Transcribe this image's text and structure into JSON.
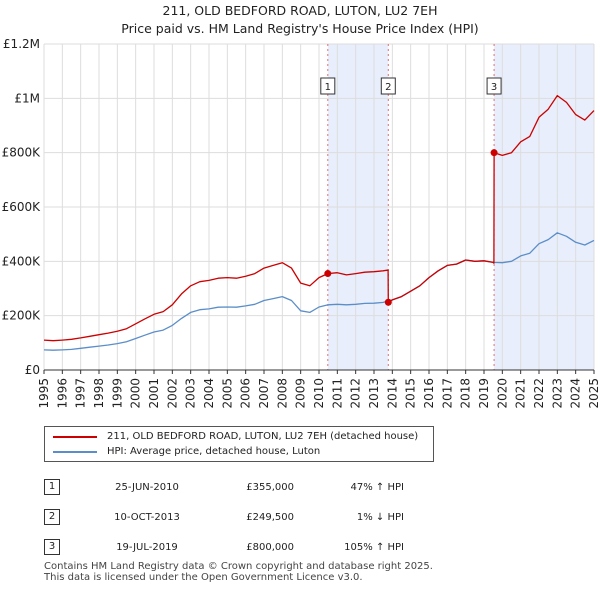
{
  "header": {
    "title_line1": "211, OLD BEDFORD ROAD, LUTON, LU2 7EH",
    "title_line2": "Price paid vs. HM Land Registry's House Price Index (HPI)"
  },
  "colors": {
    "property_line": "#cc0000",
    "hpi_line": "#5b8ec9",
    "shade": "#e8eefb",
    "vline": "#e07070",
    "grid": "#dddddd"
  },
  "chart_data": {
    "type": "line",
    "title": "211, OLD BEDFORD ROAD, LUTON, LU2 7EH — Price paid vs. HM Land Registry's House Price Index (HPI)",
    "xlabel": "",
    "ylabel": "",
    "xlim": [
      1995.0,
      2025.0
    ],
    "ylim": [
      0,
      1200000
    ],
    "grid": true,
    "x_ticks": [
      "1995",
      "1996",
      "1997",
      "1998",
      "1999",
      "2000",
      "2001",
      "2002",
      "2003",
      "2004",
      "2005",
      "2006",
      "2007",
      "2008",
      "2009",
      "2010",
      "2011",
      "2012",
      "2013",
      "2014",
      "2015",
      "2016",
      "2017",
      "2018",
      "2019",
      "2020",
      "2021",
      "2022",
      "2023",
      "2024",
      "2025"
    ],
    "y_ticks": [
      {
        "value": 0,
        "label": "£0"
      },
      {
        "value": 200000,
        "label": "£200K"
      },
      {
        "value": 400000,
        "label": "£400K"
      },
      {
        "value": 600000,
        "label": "£600K"
      },
      {
        "value": 800000,
        "label": "£800K"
      },
      {
        "value": 1000000,
        "label": "£1M"
      },
      {
        "value": 1200000,
        "label": "£1.2M"
      }
    ],
    "shaded_spans": [
      [
        2010.48,
        2013.78
      ],
      [
        2019.55,
        2025.0
      ]
    ],
    "sale_markers": [
      {
        "label": "1",
        "x": 2010.48,
        "y": 355000
      },
      {
        "label": "2",
        "x": 2013.78,
        "y": 249500
      },
      {
        "label": "3",
        "x": 2019.55,
        "y": 800000
      }
    ],
    "series": [
      {
        "name": "211, OLD BEDFORD ROAD, LUTON, LU2 7EH (detached house)",
        "color": "#cc0000",
        "x": [
          1995.0,
          1995.5,
          1996.0,
          1996.5,
          1997.0,
          1997.5,
          1998.0,
          1998.5,
          1999.0,
          1999.5,
          2000.0,
          2000.5,
          2001.0,
          2001.5,
          2002.0,
          2002.5,
          2003.0,
          2003.5,
          2004.0,
          2004.5,
          2005.0,
          2005.5,
          2006.0,
          2006.5,
          2007.0,
          2007.5,
          2008.0,
          2008.5,
          2009.0,
          2009.5,
          2010.0,
          2010.48,
          2011.0,
          2011.5,
          2012.0,
          2012.5,
          2013.0,
          2013.5,
          2013.77,
          2013.78,
          2014.0,
          2014.5,
          2015.0,
          2015.5,
          2016.0,
          2016.5,
          2017.0,
          2017.5,
          2018.0,
          2018.5,
          2019.0,
          2019.5,
          2019.54,
          2019.55,
          2020.0,
          2020.5,
          2021.0,
          2021.5,
          2022.0,
          2022.5,
          2023.0,
          2023.5,
          2024.0,
          2024.5,
          2025.0
        ],
        "values": [
          110000,
          108000,
          110000,
          113000,
          118000,
          124000,
          130000,
          136000,
          143000,
          152000,
          170000,
          188000,
          205000,
          215000,
          240000,
          280000,
          310000,
          325000,
          330000,
          338000,
          340000,
          338000,
          345000,
          355000,
          375000,
          385000,
          395000,
          375000,
          320000,
          310000,
          340000,
          355000,
          358000,
          350000,
          355000,
          360000,
          362000,
          365000,
          368000,
          249500,
          258000,
          270000,
          290000,
          310000,
          340000,
          365000,
          385000,
          390000,
          405000,
          400000,
          402000,
          396000,
          393000,
          800000,
          790000,
          800000,
          840000,
          860000,
          930000,
          960000,
          1010000,
          985000,
          940000,
          920000,
          955000
        ]
      },
      {
        "name": "HPI: Average price, detached house, Luton",
        "color": "#5b8ec9",
        "x": [
          1995.0,
          1995.5,
          1996.0,
          1996.5,
          1997.0,
          1997.5,
          1998.0,
          1998.5,
          1999.0,
          1999.5,
          2000.0,
          2000.5,
          2001.0,
          2001.5,
          2002.0,
          2002.5,
          2003.0,
          2003.5,
          2004.0,
          2004.5,
          2005.0,
          2005.5,
          2006.0,
          2006.5,
          2007.0,
          2007.5,
          2008.0,
          2008.5,
          2009.0,
          2009.5,
          2010.0,
          2010.5,
          2011.0,
          2011.5,
          2012.0,
          2012.5,
          2013.0,
          2013.5,
          2014.0,
          2014.5,
          2015.0,
          2015.5,
          2016.0,
          2016.5,
          2017.0,
          2017.5,
          2018.0,
          2018.5,
          2019.0,
          2019.5,
          2020.0,
          2020.5,
          2021.0,
          2021.5,
          2022.0,
          2022.5,
          2023.0,
          2023.5,
          2024.0,
          2024.5,
          2025.0
        ],
        "values": [
          74000,
          73000,
          74000,
          76000,
          80000,
          84000,
          88000,
          92000,
          97000,
          104000,
          116000,
          128000,
          140000,
          147000,
          164000,
          190000,
          212000,
          222000,
          225000,
          231000,
          232000,
          231000,
          236000,
          242000,
          256000,
          263000,
          270000,
          256000,
          218000,
          212000,
          232000,
          240000,
          242000,
          240000,
          242000,
          245000,
          246000,
          249000,
          258000,
          270000,
          290000,
          310000,
          340000,
          365000,
          385000,
          390000,
          405000,
          400000,
          402000,
          396000,
          395000,
          400000,
          420000,
          430000,
          465000,
          480000,
          505000,
          492000,
          470000,
          460000,
          477000
        ]
      }
    ]
  },
  "legend": {
    "items": [
      {
        "label": "211, OLD BEDFORD ROAD, LUTON, LU2 7EH (detached house)"
      },
      {
        "label": "HPI: Average price, detached house, Luton"
      }
    ]
  },
  "sales": [
    {
      "num": "1",
      "date": "25-JUN-2010",
      "price": "£355,000",
      "hpi": "47% ↑ HPI"
    },
    {
      "num": "2",
      "date": "10-OCT-2013",
      "price": "£249,500",
      "hpi": "1% ↓ HPI"
    },
    {
      "num": "3",
      "date": "19-JUL-2019",
      "price": "£800,000",
      "hpi": "105% ↑ HPI"
    }
  ],
  "footer": {
    "line1": "Contains HM Land Registry data © Crown copyright and database right 2025.",
    "line2": "This data is licensed under the Open Government Licence v3.0."
  }
}
